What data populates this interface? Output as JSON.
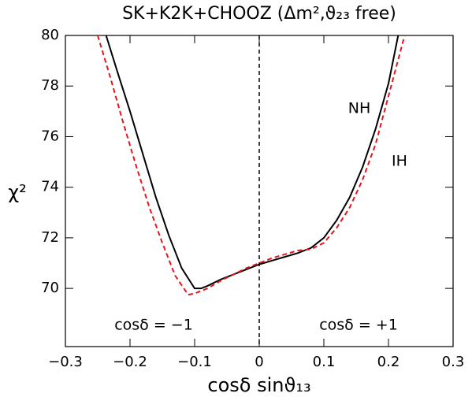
{
  "chart_data": {
    "type": "line",
    "title": "SK+K2K+CHOOZ (Δm²,ϑ₂₃ free)",
    "x_label": "cosδ sinϑ₁₃",
    "y_label": "χ²",
    "xlim": [
      -0.3,
      0.3
    ],
    "ylim": [
      67.7,
      80
    ],
    "xticks": [
      {
        "value": -0.3,
        "label": "−0.3"
      },
      {
        "value": -0.2,
        "label": "−0.2"
      },
      {
        "value": -0.1,
        "label": "−0.1"
      },
      0,
      0.1,
      0.2,
      0.3
    ],
    "yticks": [
      70,
      72,
      74,
      76,
      78,
      80
    ],
    "vline": 0,
    "annotations": [
      "cosδ = −1",
      "cosδ = +1"
    ],
    "series": [
      {
        "name": "NH",
        "color": "#000000",
        "dashed": false,
        "x": [
          -0.237,
          -0.22,
          -0.2,
          -0.18,
          -0.16,
          -0.14,
          -0.12,
          -0.1,
          -0.09,
          -0.08,
          -0.06,
          -0.04,
          -0.02,
          0,
          0.02,
          0.04,
          0.06,
          0.08,
          0.1,
          0.12,
          0.14,
          0.16,
          0.18,
          0.2,
          0.215
        ],
        "values": [
          80,
          78.6,
          77.0,
          75.3,
          73.6,
          72.1,
          70.8,
          70.0,
          70.0,
          70.1,
          70.35,
          70.55,
          70.75,
          70.95,
          71.1,
          71.25,
          71.4,
          71.6,
          72.0,
          72.7,
          73.6,
          74.8,
          76.3,
          78.1,
          80
        ]
      },
      {
        "name": "IH",
        "color": "#e8141c",
        "dashed": true,
        "x": [
          -0.25,
          -0.23,
          -0.21,
          -0.19,
          -0.17,
          -0.15,
          -0.13,
          -0.11,
          -0.1,
          -0.08,
          -0.06,
          -0.04,
          -0.02,
          0,
          0.02,
          0.04,
          0.06,
          0.08,
          0.1,
          0.12,
          0.14,
          0.16,
          0.18,
          0.2,
          0.225
        ],
        "values": [
          80,
          78.3,
          76.5,
          74.8,
          73.2,
          71.8,
          70.5,
          69.75,
          69.8,
          70.0,
          70.3,
          70.55,
          70.8,
          71.0,
          71.2,
          71.35,
          71.5,
          71.55,
          71.8,
          72.4,
          73.2,
          74.3,
          75.7,
          77.6,
          80
        ]
      }
    ]
  }
}
